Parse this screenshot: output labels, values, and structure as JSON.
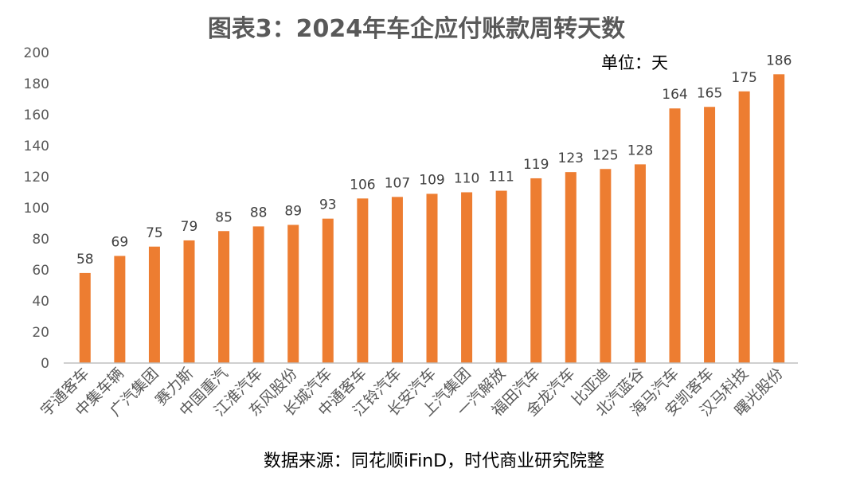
{
  "chart_data": {
    "type": "bar",
    "title": "图表3：2024年车企应付账款周转天数",
    "unit_note": "单位：天",
    "source": "数据来源：同花顺iFinD，时代商业研究院整",
    "categories": [
      "宇通客车",
      "中集车辆",
      "广汽集团",
      "赛力斯",
      "中国重汽",
      "江淮汽车",
      "东风股份",
      "长城汽车",
      "中通客车",
      "江铃汽车",
      "长安汽车",
      "上汽集团",
      "一汽解放",
      "福田汽车",
      "金龙汽车",
      "比亚迪",
      "北汽蓝谷",
      "海马汽车",
      "安凯客车",
      "汉马科技",
      "曙光股份"
    ],
    "values": [
      58,
      69,
      75,
      79,
      85,
      88,
      89,
      93,
      106,
      107,
      109,
      110,
      111,
      119,
      123,
      125,
      128,
      164,
      165,
      175,
      186
    ],
    "ylim": [
      0,
      200
    ],
    "yticks": [
      0,
      20,
      40,
      60,
      80,
      100,
      120,
      140,
      160,
      180,
      200
    ],
    "grid": false,
    "bar_color": "#ED7D31"
  }
}
